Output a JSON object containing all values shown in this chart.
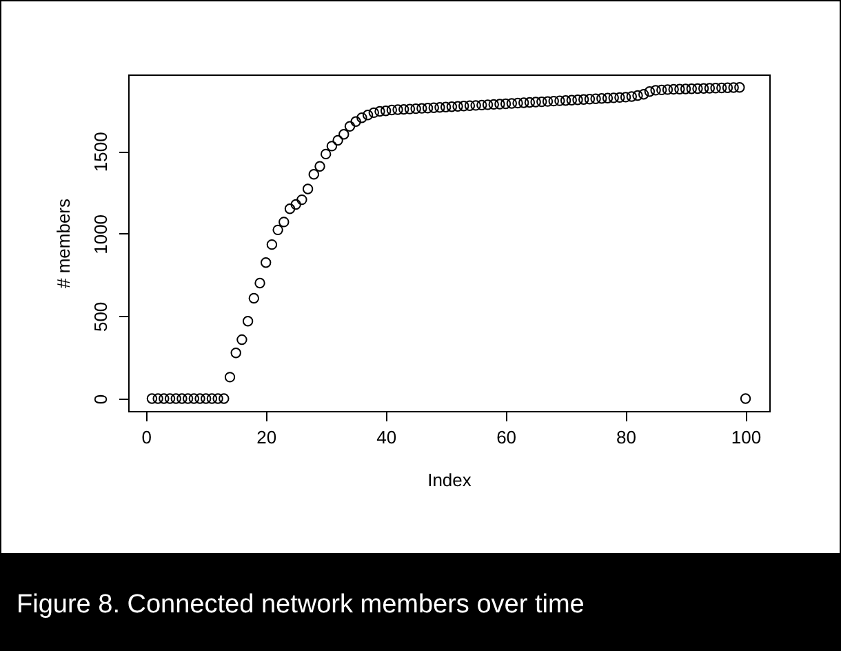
{
  "chart_data": {
    "type": "scatter",
    "xlabel": "Index",
    "ylabel": "# members",
    "x": [
      1,
      2,
      3,
      4,
      5,
      6,
      7,
      8,
      9,
      10,
      11,
      12,
      13,
      14,
      15,
      16,
      17,
      18,
      19,
      20,
      21,
      22,
      23,
      24,
      25,
      26,
      27,
      28,
      29,
      30,
      31,
      32,
      33,
      34,
      35,
      36,
      37,
      38,
      39,
      40,
      41,
      42,
      43,
      44,
      45,
      46,
      47,
      48,
      49,
      50,
      51,
      52,
      53,
      54,
      55,
      56,
      57,
      58,
      59,
      60,
      61,
      62,
      63,
      64,
      65,
      66,
      67,
      68,
      69,
      70,
      71,
      72,
      73,
      74,
      75,
      76,
      77,
      78,
      79,
      80,
      81,
      82,
      83,
      84,
      85,
      86,
      87,
      88,
      89,
      90,
      91,
      92,
      93,
      94,
      95,
      96,
      97,
      98,
      99,
      100
    ],
    "series": [
      {
        "color": "#000000",
        "values": [
          0,
          0,
          0,
          0,
          0,
          0,
          0,
          0,
          0,
          0,
          0,
          0,
          0,
          130,
          277,
          357,
          469,
          608,
          700,
          825,
          934,
          1023,
          1071,
          1151,
          1177,
          1206,
          1271,
          1360,
          1408,
          1483,
          1531,
          1566,
          1603,
          1651,
          1680,
          1703,
          1720,
          1734,
          1742,
          1745,
          1750,
          1752,
          1754,
          1756,
          1758,
          1760,
          1762,
          1764,
          1766,
          1768,
          1770,
          1772,
          1774,
          1776,
          1778,
          1780,
          1782,
          1784,
          1786,
          1788,
          1790,
          1792,
          1794,
          1796,
          1798,
          1800,
          1802,
          1804,
          1806,
          1808,
          1810,
          1812,
          1814,
          1816,
          1818,
          1820,
          1822,
          1824,
          1826,
          1828,
          1832,
          1838,
          1845,
          1862,
          1870,
          1872,
          1874,
          1876,
          1877,
          1878,
          1879,
          1880,
          1881,
          1882,
          1883,
          1884,
          1885,
          1886,
          1887,
          0
        ]
      }
    ],
    "xlim": [
      -2.96,
      103.96
    ],
    "xticks": [
      0,
      20,
      40,
      60,
      80,
      100
    ],
    "ylim": [
      -75.6,
      1965.6
    ],
    "yticks": [
      0,
      500,
      1000,
      1500
    ],
    "grid": false,
    "marker": "circle",
    "annotations": [
      "Figure 8. Connected network members over time"
    ]
  }
}
